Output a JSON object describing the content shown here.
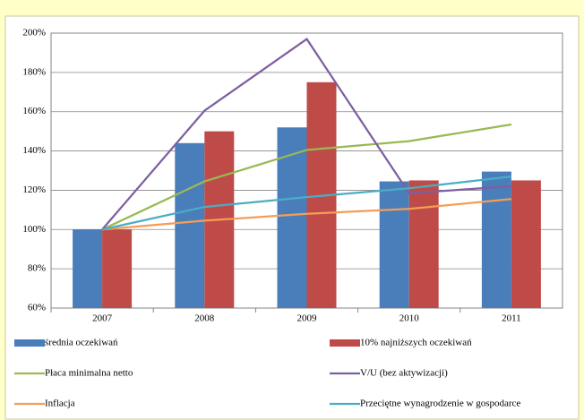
{
  "chart_data": {
    "type": "bar-line",
    "categories": [
      "2007",
      "2008",
      "2009",
      "2010",
      "2011"
    ],
    "series": [
      {
        "name": "średnia oczekiwań",
        "kind": "bar",
        "color": "#4a7ebb",
        "values": [
          100,
          144,
          152,
          124.5,
          129.5
        ]
      },
      {
        "name": "10% najniższych oczekiwań",
        "kind": "bar",
        "color": "#be4b48",
        "values": [
          100,
          150,
          175,
          125,
          125
        ]
      },
      {
        "name": "Płaca minimalna netto",
        "kind": "line",
        "color": "#98b954",
        "values": [
          100,
          124.5,
          140.5,
          145,
          153.5
        ]
      },
      {
        "name": "V/U (bez aktywizacji)",
        "kind": "line",
        "color": "#7d5fa0",
        "values": [
          100,
          160.5,
          197,
          118.5,
          122
        ]
      },
      {
        "name": "Inflacja",
        "kind": "line",
        "color": "#f59d56",
        "values": [
          100,
          104.5,
          108,
          110.5,
          115.5
        ]
      },
      {
        "name": "Przeciętne wynagrodzenie w gospodarce",
        "kind": "line",
        "color": "#4bacc6",
        "values": [
          100,
          111.5,
          116.5,
          121,
          127
        ]
      }
    ],
    "ylim": [
      60,
      200
    ],
    "yticks": [
      {
        "value": 60,
        "label": "60%"
      },
      {
        "value": 80,
        "label": "80%"
      },
      {
        "value": 100,
        "label": "100%"
      },
      {
        "value": 120,
        "label": "120%"
      },
      {
        "value": 140,
        "label": "140%"
      },
      {
        "value": 160,
        "label": "160%"
      },
      {
        "value": 180,
        "label": "180%"
      },
      {
        "value": 200,
        "label": "200%"
      }
    ],
    "grid": true
  }
}
